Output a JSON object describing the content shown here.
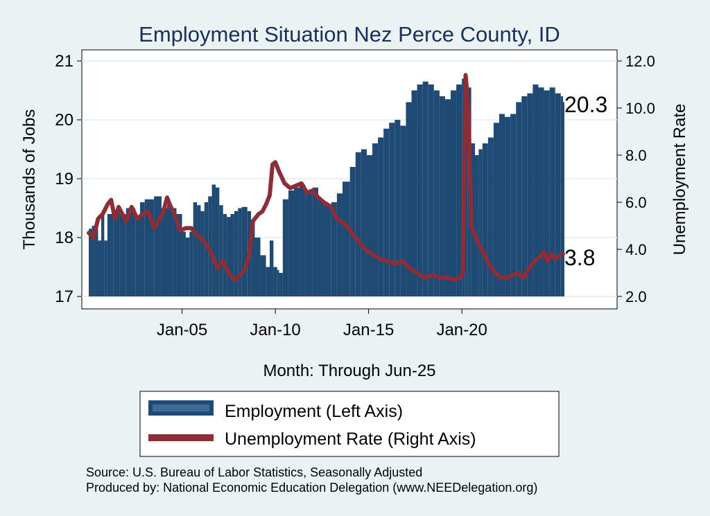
{
  "chart_data": {
    "type": "bar",
    "title": "Employment Situation Nez Perce  County, ID",
    "xlabel": "Month: Through Jun-25",
    "ylabel_left": "Thousands of Jobs",
    "ylabel_right": "Unemployment Rate",
    "ylim_left": [
      17,
      21
    ],
    "ylim_right": [
      2.0,
      12.0
    ],
    "yticks_left": [
      "17",
      "18",
      "19",
      "20",
      "21"
    ],
    "yticks_right": [
      "2.0",
      "4.0",
      "6.0",
      "8.0",
      "10.0",
      "12.0"
    ],
    "xticks": [
      "Jan-05",
      "Jan-10",
      "Jan-15",
      "Jan-20"
    ],
    "x_range": [
      "Jan-00",
      "Jun-25"
    ],
    "grid": true,
    "legend_position": "bottom",
    "series": [
      {
        "name": "Employment (Left Axis)",
        "kind": "bar",
        "axis": "left",
        "color": "#1f4a73",
        "points": [
          [
            2000.0,
            18.15
          ],
          [
            2000.17,
            18.2
          ],
          [
            2000.33,
            18.25
          ],
          [
            2000.5,
            17.95
          ],
          [
            2000.67,
            18.4
          ],
          [
            2000.83,
            17.95
          ],
          [
            2001.0,
            18.4
          ],
          [
            2001.33,
            18.45
          ],
          [
            2001.67,
            18.4
          ],
          [
            2002.0,
            18.5
          ],
          [
            2002.5,
            18.35
          ],
          [
            2002.75,
            18.6
          ],
          [
            2003.0,
            18.65
          ],
          [
            2003.5,
            18.7
          ],
          [
            2003.9,
            18.5
          ],
          [
            2004.2,
            18.55
          ],
          [
            2004.5,
            18.5
          ],
          [
            2004.7,
            18.4
          ],
          [
            2005.0,
            18.1
          ],
          [
            2005.2,
            18.0
          ],
          [
            2005.4,
            18.1
          ],
          [
            2005.6,
            18.6
          ],
          [
            2005.8,
            18.55
          ],
          [
            2006.0,
            18.45
          ],
          [
            2006.2,
            18.6
          ],
          [
            2006.4,
            18.7
          ],
          [
            2006.6,
            18.9
          ],
          [
            2006.8,
            18.85
          ],
          [
            2007.0,
            18.55
          ],
          [
            2007.2,
            18.4
          ],
          [
            2007.4,
            18.35
          ],
          [
            2007.6,
            18.4
          ],
          [
            2007.8,
            18.45
          ],
          [
            2008.0,
            18.5
          ],
          [
            2008.2,
            18.52
          ],
          [
            2008.5,
            18.45
          ],
          [
            2008.7,
            18.3
          ],
          [
            2008.9,
            18.0
          ],
          [
            2009.2,
            17.7
          ],
          [
            2009.5,
            17.5
          ],
          [
            2009.7,
            17.95
          ],
          [
            2009.9,
            17.5
          ],
          [
            2010.1,
            17.45
          ],
          [
            2010.2,
            17.4
          ],
          [
            2010.4,
            18.65
          ],
          [
            2010.7,
            18.8
          ],
          [
            2011.0,
            18.85
          ],
          [
            2011.3,
            18.9
          ],
          [
            2011.6,
            18.75
          ],
          [
            2012.0,
            18.85
          ],
          [
            2012.3,
            18.65
          ],
          [
            2012.6,
            18.55
          ],
          [
            2013.0,
            18.6
          ],
          [
            2013.3,
            18.75
          ],
          [
            2013.6,
            18.95
          ],
          [
            2014.0,
            19.2
          ],
          [
            2014.3,
            19.45
          ],
          [
            2014.6,
            19.5
          ],
          [
            2014.9,
            19.4
          ],
          [
            2015.2,
            19.6
          ],
          [
            2015.5,
            19.7
          ],
          [
            2015.8,
            19.85
          ],
          [
            2016.1,
            19.95
          ],
          [
            2016.4,
            20.0
          ],
          [
            2016.7,
            19.9
          ],
          [
            2017.0,
            20.3
          ],
          [
            2017.3,
            20.5
          ],
          [
            2017.6,
            20.6
          ],
          [
            2017.9,
            20.65
          ],
          [
            2018.2,
            20.6
          ],
          [
            2018.5,
            20.5
          ],
          [
            2018.8,
            20.4
          ],
          [
            2019.1,
            20.35
          ],
          [
            2019.4,
            20.5
          ],
          [
            2019.7,
            20.6
          ],
          [
            2020.0,
            20.7
          ],
          [
            2020.15,
            20.6
          ],
          [
            2020.3,
            20.55
          ],
          [
            2020.5,
            19.6
          ],
          [
            2020.7,
            19.4
          ],
          [
            2020.9,
            19.5
          ],
          [
            2021.1,
            19.6
          ],
          [
            2021.4,
            19.7
          ],
          [
            2021.7,
            19.95
          ],
          [
            2022.0,
            20.1
          ],
          [
            2022.3,
            20.05
          ],
          [
            2022.6,
            20.1
          ],
          [
            2022.9,
            20.3
          ],
          [
            2023.2,
            20.4
          ],
          [
            2023.5,
            20.45
          ],
          [
            2023.8,
            20.6
          ],
          [
            2024.1,
            20.55
          ],
          [
            2024.4,
            20.5
          ],
          [
            2024.7,
            20.55
          ],
          [
            2025.0,
            20.45
          ],
          [
            2025.3,
            20.4
          ],
          [
            2025.42,
            20.3
          ]
        ]
      },
      {
        "name": "Unemployment Rate (Right Axis)",
        "kind": "line",
        "axis": "right",
        "color": "#8b2e38",
        "points": [
          [
            2000.0,
            4.7
          ],
          [
            2000.25,
            4.5
          ],
          [
            2000.5,
            5.3
          ],
          [
            2000.75,
            5.5
          ],
          [
            2001.0,
            5.9
          ],
          [
            2001.2,
            6.1
          ],
          [
            2001.4,
            5.3
          ],
          [
            2001.6,
            5.8
          ],
          [
            2001.8,
            5.5
          ],
          [
            2002.0,
            5.2
          ],
          [
            2002.3,
            5.8
          ],
          [
            2002.6,
            5.3
          ],
          [
            2002.9,
            5.5
          ],
          [
            2003.2,
            5.6
          ],
          [
            2003.5,
            4.9
          ],
          [
            2003.8,
            5.3
          ],
          [
            2004.0,
            5.6
          ],
          [
            2004.2,
            6.2
          ],
          [
            2004.4,
            5.8
          ],
          [
            2004.6,
            5.5
          ],
          [
            2004.9,
            4.8
          ],
          [
            2005.2,
            4.9
          ],
          [
            2005.5,
            4.9
          ],
          [
            2005.8,
            4.6
          ],
          [
            2006.0,
            4.5
          ],
          [
            2006.3,
            4.2
          ],
          [
            2006.6,
            3.8
          ],
          [
            2006.9,
            3.2
          ],
          [
            2007.2,
            3.5
          ],
          [
            2007.5,
            3.0
          ],
          [
            2007.8,
            2.7
          ],
          [
            2008.1,
            2.9
          ],
          [
            2008.4,
            3.2
          ],
          [
            2008.6,
            3.8
          ],
          [
            2008.8,
            5.2
          ],
          [
            2009.1,
            5.5
          ],
          [
            2009.3,
            5.6
          ],
          [
            2009.5,
            5.9
          ],
          [
            2009.7,
            6.3
          ],
          [
            2009.85,
            7.6
          ],
          [
            2010.0,
            7.7
          ],
          [
            2010.2,
            7.3
          ],
          [
            2010.5,
            6.8
          ],
          [
            2010.8,
            6.6
          ],
          [
            2011.1,
            6.7
          ],
          [
            2011.4,
            6.8
          ],
          [
            2011.7,
            6.4
          ],
          [
            2012.0,
            6.5
          ],
          [
            2012.3,
            6.2
          ],
          [
            2012.6,
            6.0
          ],
          [
            2013.0,
            5.8
          ],
          [
            2013.3,
            5.3
          ],
          [
            2013.7,
            5.1
          ],
          [
            2014.0,
            4.8
          ],
          [
            2014.4,
            4.4
          ],
          [
            2014.8,
            4.0
          ],
          [
            2015.2,
            3.8
          ],
          [
            2015.6,
            3.6
          ],
          [
            2016.0,
            3.5
          ],
          [
            2016.4,
            3.4
          ],
          [
            2016.8,
            3.5
          ],
          [
            2017.2,
            3.2
          ],
          [
            2017.6,
            3.0
          ],
          [
            2018.0,
            2.8
          ],
          [
            2018.4,
            2.9
          ],
          [
            2018.8,
            2.8
          ],
          [
            2019.2,
            2.8
          ],
          [
            2019.6,
            2.7
          ],
          [
            2019.9,
            2.8
          ],
          [
            2020.05,
            3.0
          ],
          [
            2020.2,
            11.4
          ],
          [
            2020.35,
            10.0
          ],
          [
            2020.5,
            5.0
          ],
          [
            2020.7,
            4.6
          ],
          [
            2020.9,
            4.2
          ],
          [
            2021.2,
            3.8
          ],
          [
            2021.5,
            3.3
          ],
          [
            2021.8,
            3.0
          ],
          [
            2022.1,
            2.8
          ],
          [
            2022.4,
            2.8
          ],
          [
            2022.7,
            2.9
          ],
          [
            2023.0,
            3.0
          ],
          [
            2023.3,
            2.8
          ],
          [
            2023.6,
            3.2
          ],
          [
            2023.9,
            3.5
          ],
          [
            2024.2,
            3.7
          ],
          [
            2024.4,
            3.9
          ],
          [
            2024.6,
            3.5
          ],
          [
            2024.8,
            3.8
          ],
          [
            2025.0,
            3.6
          ],
          [
            2025.2,
            3.7
          ],
          [
            2025.42,
            3.8
          ]
        ]
      }
    ],
    "end_labels": {
      "employment": "20.3",
      "unemployment": "3.8"
    }
  },
  "source": {
    "line1": "Source: U.S. Bureau of Labor Statistics, Seasonally Adjusted",
    "line2": "Produced by: National Economic Education Delegation (www.NEEDelegation.org)"
  }
}
